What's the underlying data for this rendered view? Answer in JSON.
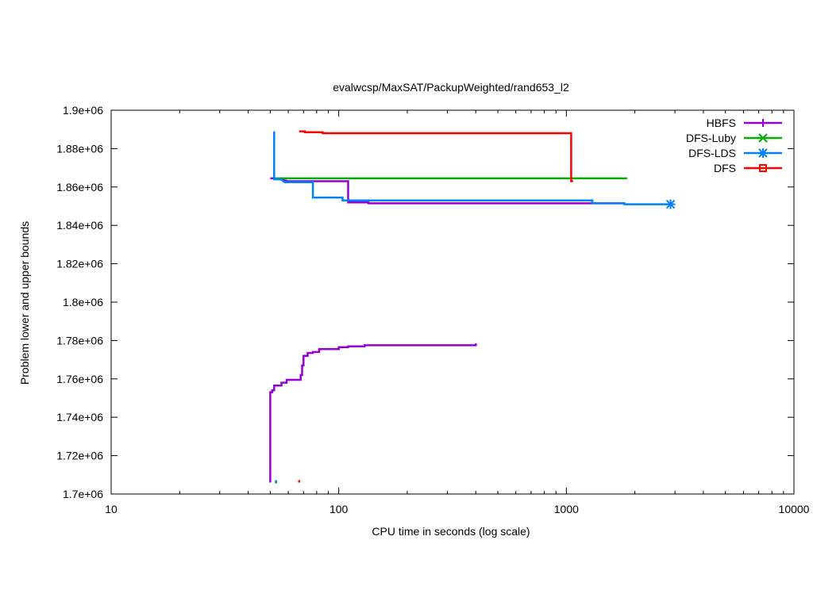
{
  "chart_data": {
    "type": "line",
    "title": "evalwcsp/MaxSAT/PackupWeighted/rand653_l2",
    "xlabel": "CPU time in seconds (log scale)",
    "ylabel": "Problem lower and upper bounds",
    "xscale": "log",
    "xlim": [
      10,
      10000
    ],
    "ylim": [
      1700000,
      1900000
    ],
    "x_ticks": [
      10,
      100,
      1000,
      10000
    ],
    "x_tick_labels": [
      "10",
      "100",
      "1000",
      "10000"
    ],
    "y_ticks": [
      1700000,
      1720000,
      1740000,
      1760000,
      1780000,
      1800000,
      1820000,
      1840000,
      1860000,
      1880000,
      1900000
    ],
    "y_tick_labels": [
      "1.7e+06",
      "1.72e+06",
      "1.74e+06",
      "1.76e+06",
      "1.78e+06",
      "1.8e+06",
      "1.82e+06",
      "1.84e+06",
      "1.86e+06",
      "1.88e+06",
      "1.9e+06"
    ],
    "grid": false,
    "legend_position": "top-right",
    "series": [
      {
        "name": "HBFS",
        "color": "#9400d3",
        "marker": "plus",
        "segments": [
          [
            [
              50,
              1864500
            ],
            [
              52,
              1864500
            ],
            [
              55,
              1864000
            ],
            [
              60,
              1863000
            ],
            [
              75,
              1863000
            ],
            [
              110,
              1863000
            ],
            [
              110,
              1852000
            ],
            [
              135,
              1852000
            ],
            [
              135,
              1851500
            ],
            [
              1800,
              1851500
            ]
          ],
          [
            [
              50,
              1706000
            ],
            [
              50,
              1753000
            ],
            [
              51,
              1753000
            ],
            [
              51,
              1754000
            ],
            [
              52,
              1754000
            ],
            [
              52,
              1756500
            ],
            [
              56,
              1756500
            ],
            [
              56,
              1758000
            ],
            [
              59,
              1758000
            ],
            [
              59,
              1759500
            ],
            [
              65,
              1759500
            ],
            [
              68,
              1759500
            ],
            [
              68,
              1762000
            ],
            [
              69,
              1762000
            ],
            [
              69,
              1767000
            ],
            [
              70,
              1767000
            ],
            [
              70,
              1772000
            ],
            [
              73,
              1772000
            ],
            [
              73,
              1773500
            ],
            [
              77,
              1773500
            ],
            [
              77,
              1774000
            ],
            [
              82,
              1774000
            ],
            [
              82,
              1775500
            ],
            [
              100,
              1775500
            ],
            [
              100,
              1776500
            ],
            [
              110,
              1776500
            ],
            [
              110,
              1777000
            ],
            [
              130,
              1777000
            ],
            [
              130,
              1777500
            ],
            [
              400,
              1777500
            ],
            [
              400,
              1778500
            ]
          ]
        ]
      },
      {
        "name": "DFS-Luby",
        "color": "#00b000",
        "marker": "cross",
        "segments": [
          [
            [
              52,
              1864500
            ],
            [
              1850,
              1864500
            ]
          ],
          [
            [
              52.5,
              1706000
            ],
            [
              53.5,
              1706000
            ]
          ]
        ]
      },
      {
        "name": "DFS-LDS",
        "color": "#0080ff",
        "marker": "star",
        "end_marker": [
          2870,
          1851000
        ],
        "segments": [
          [
            [
              52,
              1889000
            ],
            [
              52,
              1864000
            ],
            [
              56,
              1864000
            ],
            [
              57,
              1863000
            ],
            [
              58,
              1862500
            ],
            [
              77,
              1862500
            ],
            [
              77,
              1854500
            ],
            [
              104,
              1854500
            ],
            [
              104,
              1853000
            ],
            [
              1300,
              1853000
            ],
            [
              1300,
              1851500
            ],
            [
              1800,
              1851500
            ],
            [
              1800,
              1851000
            ],
            [
              2870,
              1851000
            ]
          ],
          [
            [
              53,
              1706000
            ],
            [
              53,
              1706000
            ]
          ]
        ]
      },
      {
        "name": "DFS",
        "color": "#ff0000",
        "marker": "square",
        "segments": [
          [
            [
              67,
              1889000
            ],
            [
              71,
              1889000
            ],
            [
              71,
              1888500
            ],
            [
              85,
              1888500
            ],
            [
              85,
              1888000
            ],
            [
              1050,
              1888000
            ],
            [
              1050,
              1863000
            ],
            [
              1070,
              1863000
            ]
          ],
          [
            [
              67,
              1706000
            ],
            [
              67,
              1706000
            ]
          ]
        ]
      }
    ]
  }
}
